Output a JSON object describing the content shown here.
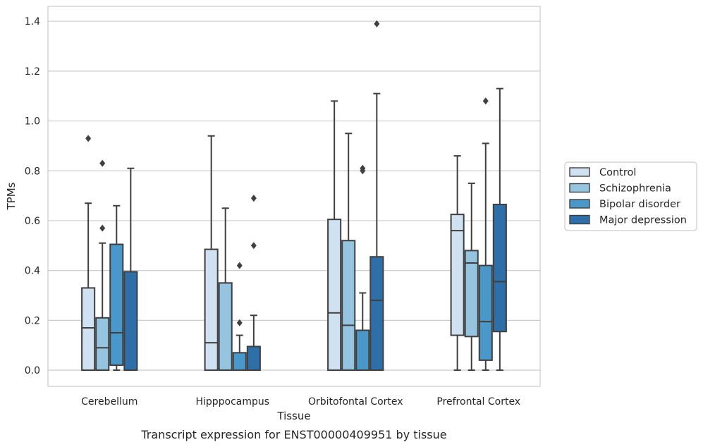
{
  "chart_data": {
    "type": "box",
    "title": "",
    "caption": "Transcript expression for ENST00000409951 by tissue",
    "xlabel": "Tissue",
    "ylabel": "TPMs",
    "ylim": [
      -0.065,
      1.46
    ],
    "yticks": [
      0.0,
      0.2,
      0.4,
      0.6,
      0.8,
      1.0,
      1.2,
      1.4
    ],
    "ytick_labels": [
      "0.0",
      "0.2",
      "0.4",
      "0.6",
      "0.8",
      "1.0",
      "1.2",
      "1.4"
    ],
    "grid": "horizontal",
    "legend_position": "right",
    "categories": [
      "Cerebellum",
      "Hipppocampus",
      "Orbitofontal Cortex",
      "Prefrontal Cortex"
    ],
    "series": [
      {
        "name": "Control",
        "color": "#d0e1f2",
        "boxes": [
          {
            "min": 0.0,
            "q1": 0.0,
            "median": 0.17,
            "q3": 0.33,
            "max": 0.67,
            "outliers": [
              0.93
            ]
          },
          {
            "min": 0.0,
            "q1": 0.0,
            "median": 0.11,
            "q3": 0.485,
            "max": 0.94,
            "outliers": []
          },
          {
            "min": 0.0,
            "q1": 0.0,
            "median": 0.23,
            "q3": 0.605,
            "max": 1.08,
            "outliers": []
          },
          {
            "min": 0.0,
            "q1": 0.14,
            "median": 0.56,
            "q3": 0.625,
            "max": 0.86,
            "outliers": []
          }
        ]
      },
      {
        "name": "Schizophrenia",
        "color": "#94c4df",
        "boxes": [
          {
            "min": 0.0,
            "q1": 0.0,
            "median": 0.09,
            "q3": 0.21,
            "max": 0.51,
            "outliers": [
              0.57,
              0.83
            ]
          },
          {
            "min": 0.0,
            "q1": 0.0,
            "median": 0.0,
            "q3": 0.35,
            "max": 0.65,
            "outliers": []
          },
          {
            "min": 0.0,
            "q1": 0.0,
            "median": 0.18,
            "q3": 0.52,
            "max": 0.95,
            "outliers": []
          },
          {
            "min": 0.0,
            "q1": 0.135,
            "median": 0.43,
            "q3": 0.48,
            "max": 0.75,
            "outliers": []
          }
        ]
      },
      {
        "name": "Bipolar disorder",
        "color": "#4a98c9",
        "boxes": [
          {
            "min": 0.0,
            "q1": 0.02,
            "median": 0.15,
            "q3": 0.505,
            "max": 0.66,
            "outliers": []
          },
          {
            "min": 0.0,
            "q1": 0.0,
            "median": 0.0,
            "q3": 0.07,
            "max": 0.14,
            "outliers": [
              0.19,
              0.42
            ]
          },
          {
            "min": 0.0,
            "q1": 0.0,
            "median": 0.0,
            "q3": 0.16,
            "max": 0.31,
            "outliers": [
              0.8,
              0.81
            ]
          },
          {
            "min": 0.0,
            "q1": 0.04,
            "median": 0.195,
            "q3": 0.42,
            "max": 0.91,
            "outliers": [
              1.08
            ]
          }
        ]
      },
      {
        "name": "Major depression",
        "color": "#2e6ea9",
        "boxes": [
          {
            "min": 0.0,
            "q1": 0.0,
            "median": 0.0,
            "q3": 0.395,
            "max": 0.81,
            "outliers": []
          },
          {
            "min": 0.0,
            "q1": 0.0,
            "median": 0.0,
            "q3": 0.095,
            "max": 0.22,
            "outliers": [
              0.5,
              0.69
            ]
          },
          {
            "min": 0.0,
            "q1": 0.0,
            "median": 0.28,
            "q3": 0.455,
            "max": 1.11,
            "outliers": [
              1.39
            ]
          },
          {
            "min": 0.0,
            "q1": 0.155,
            "median": 0.355,
            "q3": 0.665,
            "max": 1.13,
            "outliers": []
          }
        ]
      }
    ]
  }
}
